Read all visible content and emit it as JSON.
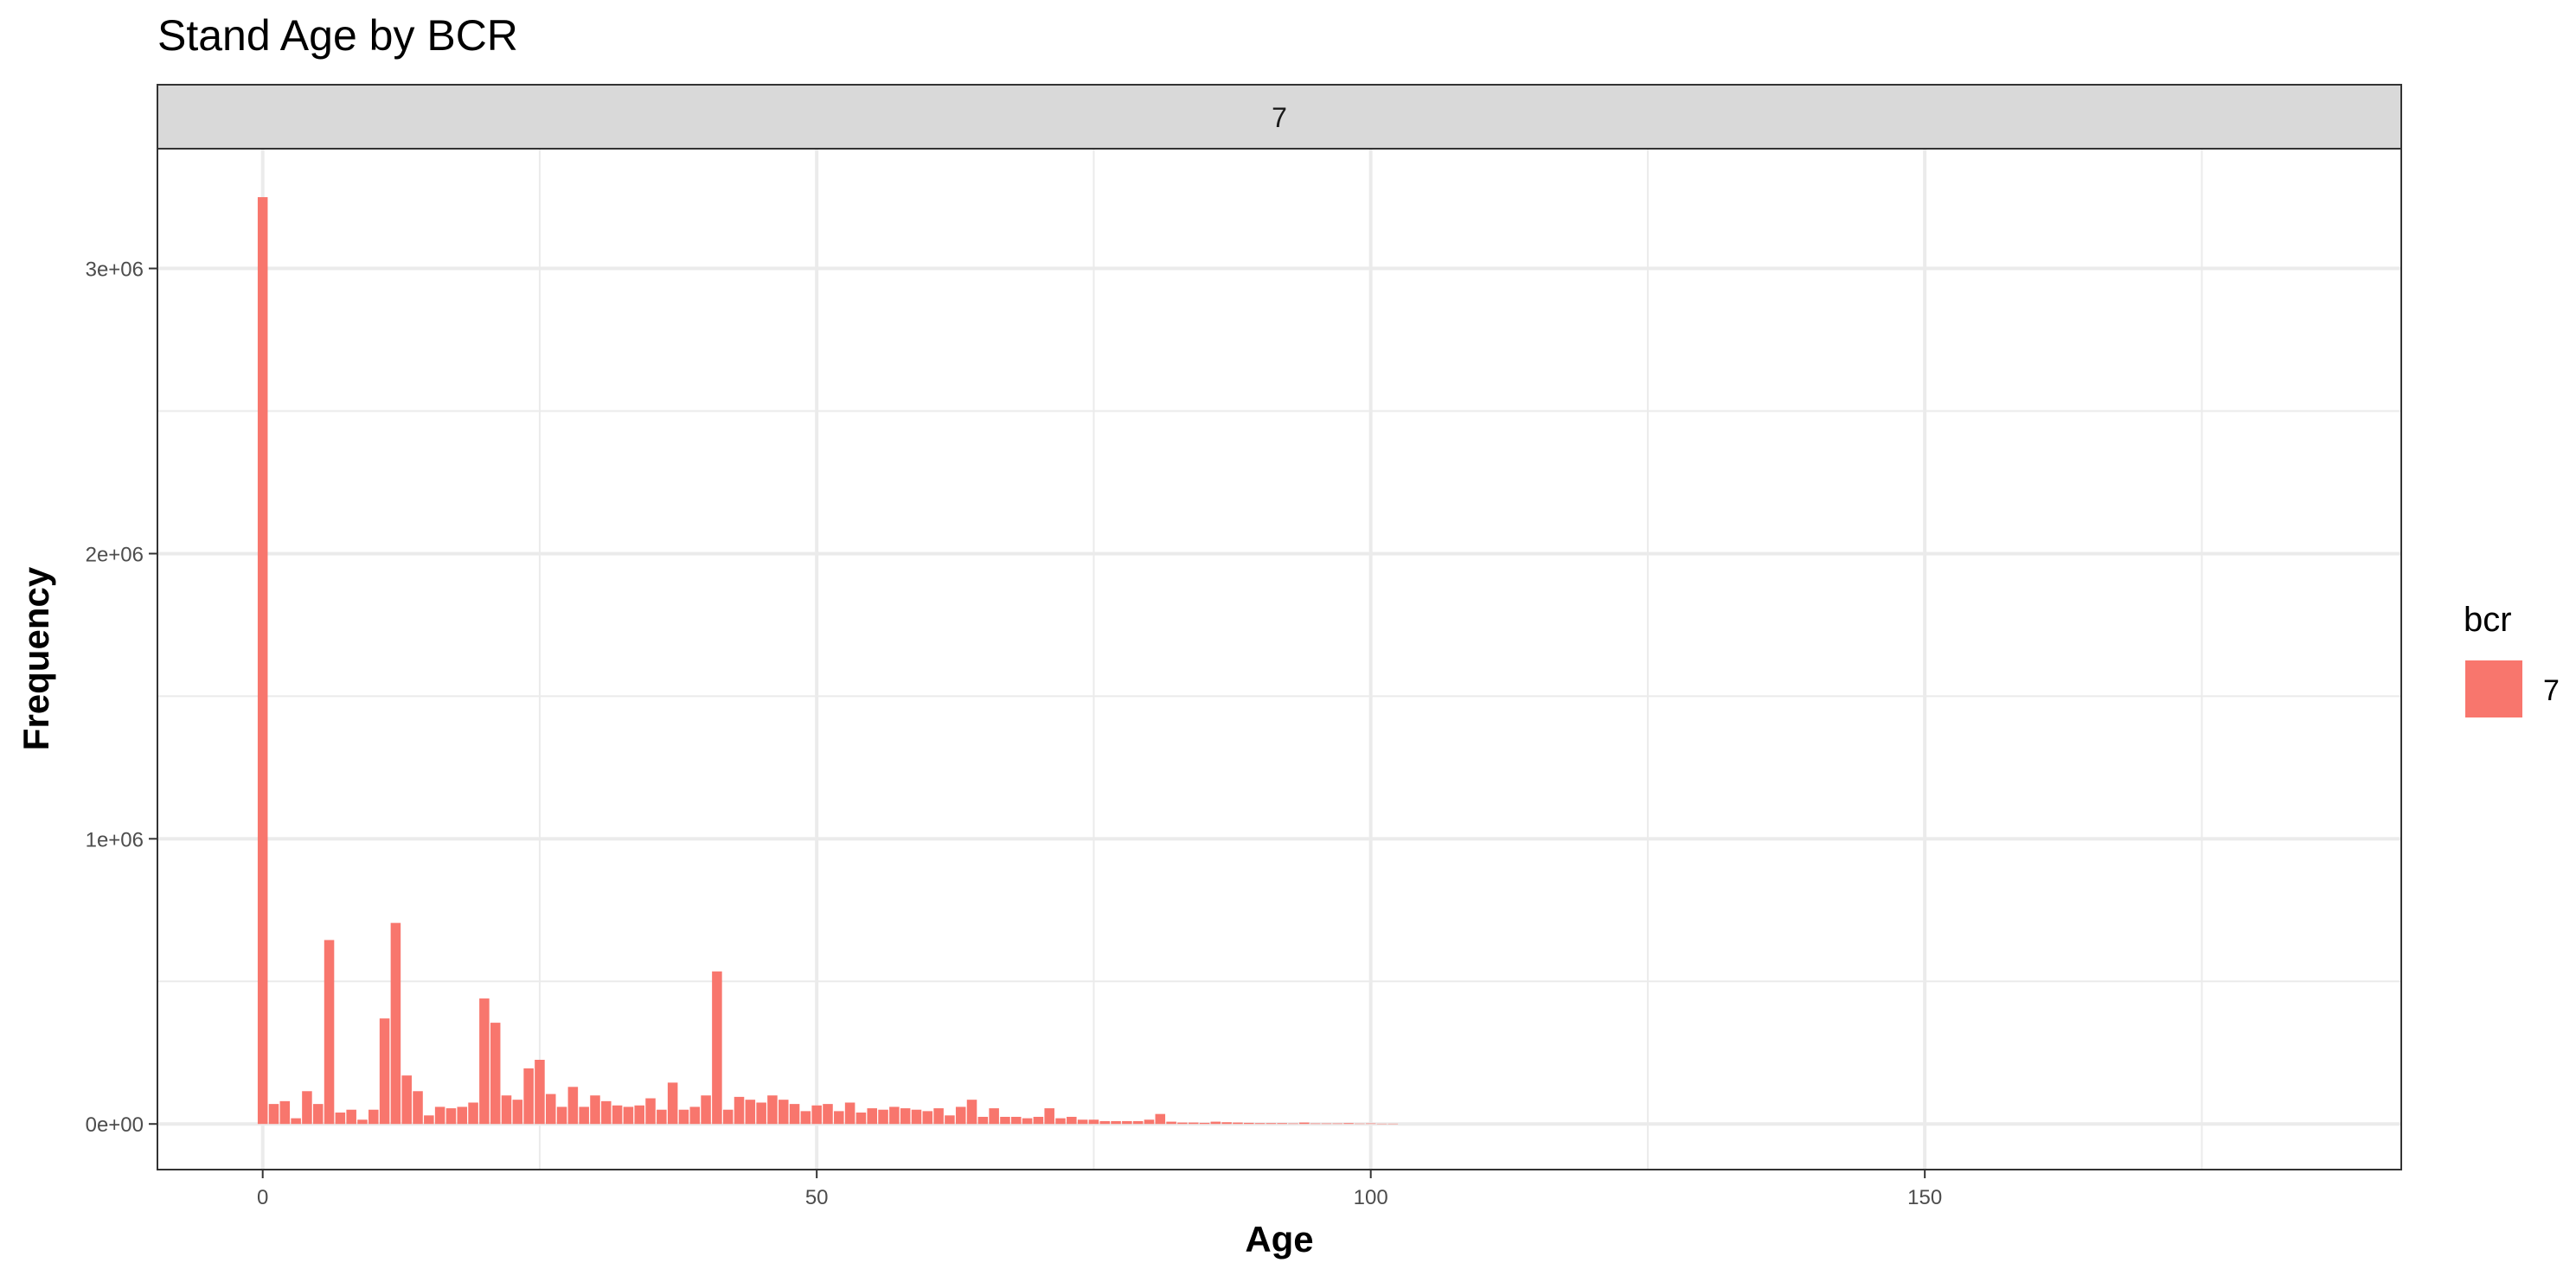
{
  "chart_data": {
    "type": "bar",
    "title": "Stand Age by BCR",
    "facet_label": "7",
    "xlabel": "Age",
    "ylabel": "Frequency",
    "xlim": [
      -9.5,
      193
    ],
    "ylim": [
      -160000,
      3420000
    ],
    "x_ticks": [
      0,
      50,
      100,
      150
    ],
    "x_tick_labels": [
      "0",
      "50",
      "100",
      "150"
    ],
    "y_ticks": [
      0,
      1000000,
      2000000,
      3000000
    ],
    "y_tick_labels": [
      "0e+00",
      "1e+06",
      "2e+06",
      "3e+06"
    ],
    "grid": true,
    "legend": {
      "title": "bcr",
      "position": "right",
      "entries": [
        {
          "label": "7",
          "color": "#F8766D"
        }
      ]
    },
    "series": [
      {
        "name": "7",
        "color": "#F8766D",
        "x": [
          0,
          1,
          2,
          3,
          4,
          5,
          6,
          7,
          8,
          9,
          10,
          11,
          12,
          13,
          14,
          15,
          16,
          17,
          18,
          19,
          20,
          21,
          22,
          23,
          24,
          25,
          26,
          27,
          28,
          29,
          30,
          31,
          32,
          33,
          34,
          35,
          36,
          37,
          38,
          39,
          40,
          41,
          42,
          43,
          44,
          45,
          46,
          47,
          48,
          49,
          50,
          51,
          52,
          53,
          54,
          55,
          56,
          57,
          58,
          59,
          60,
          61,
          62,
          63,
          64,
          65,
          66,
          67,
          68,
          69,
          70,
          71,
          72,
          73,
          74,
          75,
          76,
          77,
          78,
          79,
          80,
          81,
          82,
          83,
          84,
          85,
          86,
          87,
          88,
          89,
          90,
          91,
          92,
          93,
          94,
          95,
          96,
          97,
          98,
          99,
          100,
          101,
          102
        ],
        "values": [
          3250000,
          70000,
          80000,
          20000,
          115000,
          70000,
          645000,
          40000,
          50000,
          15000,
          50000,
          370000,
          705000,
          170000,
          115000,
          30000,
          60000,
          55000,
          60000,
          75000,
          440000,
          355000,
          100000,
          85000,
          195000,
          225000,
          105000,
          60000,
          130000,
          60000,
          100000,
          80000,
          65000,
          60000,
          65000,
          90000,
          50000,
          145000,
          50000,
          60000,
          100000,
          535000,
          50000,
          95000,
          85000,
          75000,
          100000,
          85000,
          70000,
          45000,
          65000,
          70000,
          45000,
          75000,
          40000,
          55000,
          50000,
          60000,
          55000,
          50000,
          45000,
          55000,
          30000,
          60000,
          85000,
          25000,
          55000,
          25000,
          25000,
          20000,
          25000,
          55000,
          20000,
          25000,
          15000,
          15000,
          10000,
          10000,
          10000,
          10000,
          15000,
          35000,
          8000,
          5000,
          5000,
          4000,
          8000,
          6000,
          5000,
          4000,
          3000,
          3000,
          3000,
          2000,
          5000,
          2000,
          2000,
          2000,
          3000,
          1500,
          2000,
          1000,
          1000
        ]
      }
    ]
  }
}
